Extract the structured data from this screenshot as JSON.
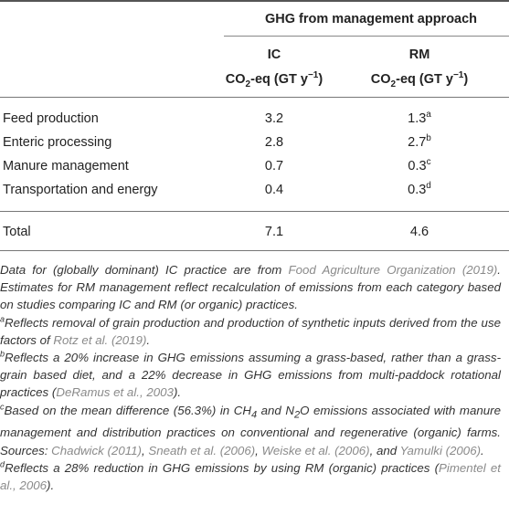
{
  "table": {
    "group_header": "GHG from management approach",
    "columns": [
      {
        "name": "IC",
        "unit": "CO2-eq (GT y−1)"
      },
      {
        "name": "RM",
        "unit": "CO2-eq (GT y−1)"
      }
    ],
    "rows": [
      {
        "label": "Feed production",
        "ic": "3.2",
        "rm": "1.3",
        "rm_note": "a"
      },
      {
        "label": "Enteric processing",
        "ic": "2.8",
        "rm": "2.7",
        "rm_note": "b"
      },
      {
        "label": "Manure management",
        "ic": "0.7",
        "rm": "0.3",
        "rm_note": "c"
      },
      {
        "label": "Transportation and energy",
        "ic": "0.4",
        "rm": "0.3",
        "rm_note": "d"
      }
    ],
    "total": {
      "label": "Total",
      "ic": "7.1",
      "rm": "4.6"
    }
  },
  "notes": {
    "intro": {
      "t1": "Data for (globally dominant) IC practice are from ",
      "ref1": "Food Agriculture Organization (2019)",
      "t2": ". Estimates for RM management reflect recalculation of emissions from each category based on studies comparing IC and RM (or organic) practices."
    },
    "a": {
      "mark": "a",
      "t1": "Reflects removal of grain production and production of synthetic inputs derived from the use factors of ",
      "ref1": "Rotz et al. (2019)",
      "t2": "."
    },
    "b": {
      "mark": "b",
      "t1": "Reflects a 20% increase in GHG emissions assuming a grass-based, rather than a grass-grain based diet, and a 22% decrease in GHG emissions from multi-paddock rotational practices (",
      "ref1": "DeRamus et al., 2003",
      "t2": ")."
    },
    "c": {
      "mark": "c",
      "t1": "Based on the mean difference (56.3%) in CH",
      "t2": " and N",
      "t3": "O emissions associated with manure management and distribution practices on conventional and regenerative (organic) farms. Sources: ",
      "ref1": "Chadwick (2011)",
      "sep1": ", ",
      "ref2": "Sneath et al. (2006)",
      "sep2": ", ",
      "ref3": "Weiske et al. (2006)",
      "sep3": ", and ",
      "ref4": "Yamulki (2006)",
      "t4": "."
    },
    "d": {
      "mark": "d",
      "t1": "Reflects a 28% reduction in GHG emissions by using RM (organic) practices (",
      "ref1": "Pimentel et al., 2006",
      "t2": ")."
    }
  }
}
